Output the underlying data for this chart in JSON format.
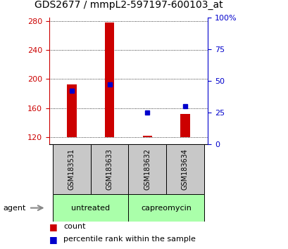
{
  "title": "GDS2677 / mmpL2-597197-600103_at",
  "samples": [
    "GSM183531",
    "GSM183633",
    "GSM183632",
    "GSM183634"
  ],
  "red_bar_bottom": 120,
  "red_bar_tops": [
    193,
    278,
    122,
    152
  ],
  "blue_pct_values": [
    42,
    47,
    25,
    30
  ],
  "ylim_left": [
    110,
    285
  ],
  "ylim_right": [
    0,
    100
  ],
  "yticks_left": [
    120,
    160,
    200,
    240,
    280
  ],
  "yticks_right": [
    0,
    25,
    50,
    75,
    100
  ],
  "groups": [
    {
      "label": "untreated",
      "indices": [
        0,
        1
      ],
      "color": "#aaffaa"
    },
    {
      "label": "capreomycin",
      "indices": [
        2,
        3
      ],
      "color": "#aaffaa"
    }
  ],
  "agent_label": "agent",
  "bar_width": 0.25,
  "red_color": "#cc0000",
  "blue_color": "#0000cc",
  "title_fontsize": 10,
  "tick_fontsize": 8,
  "label_fontsize": 8,
  "sample_label_fontsize": 7,
  "background_color": "#ffffff"
}
